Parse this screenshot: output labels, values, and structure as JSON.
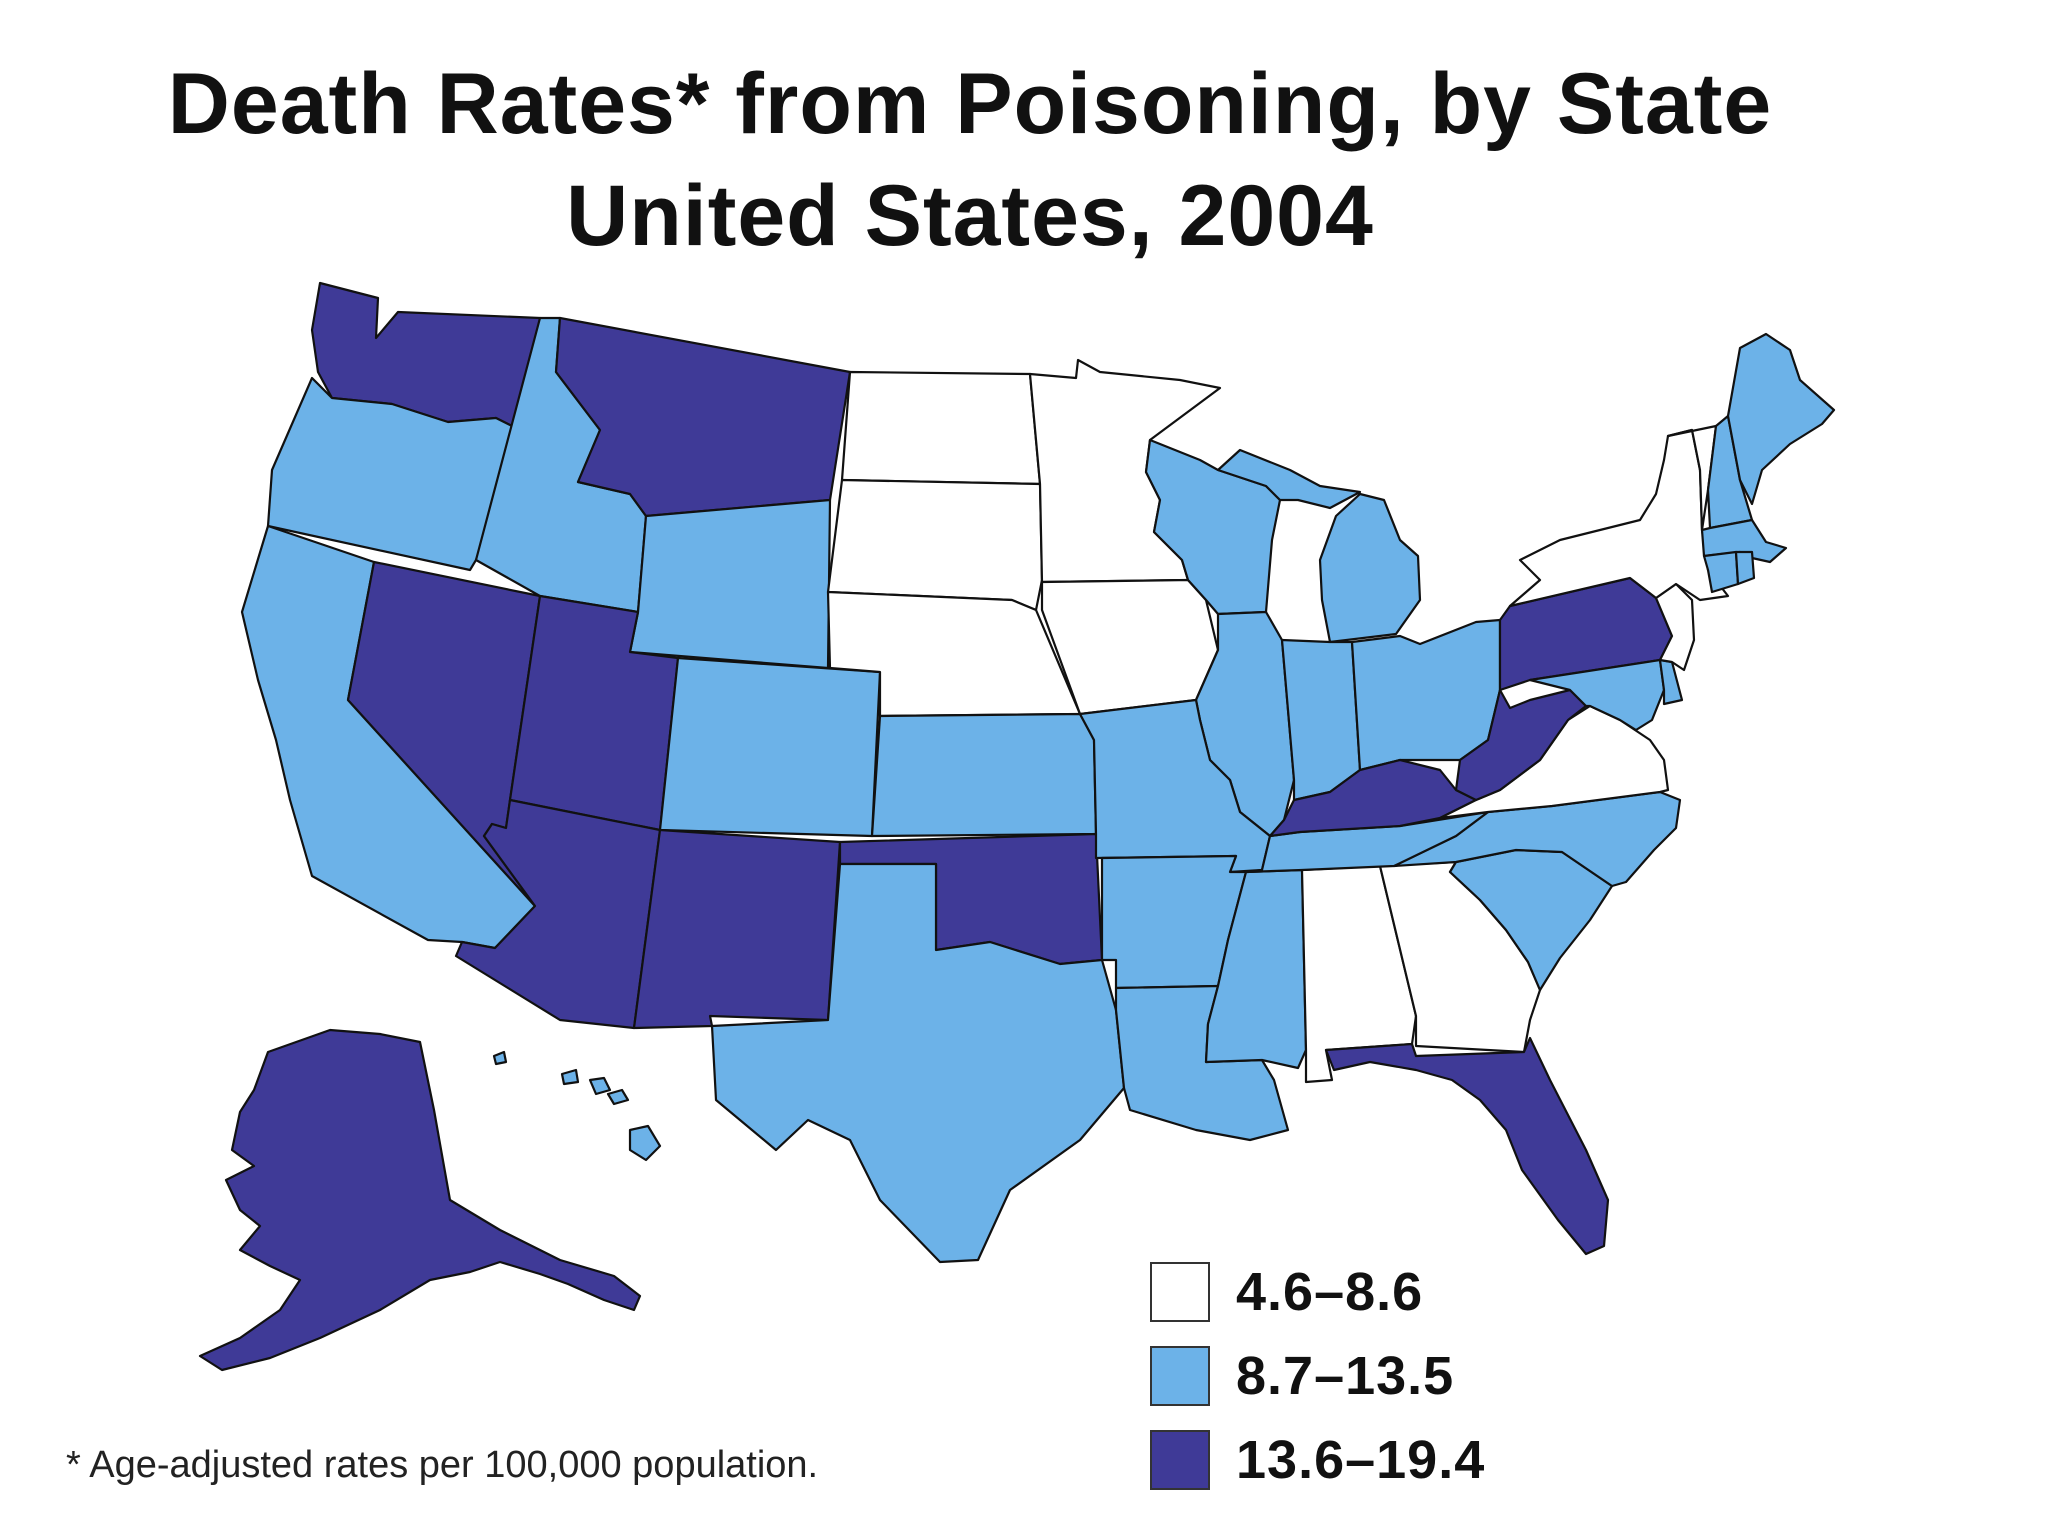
{
  "title": {
    "line1": "Death Rates* from Poisoning, by State",
    "line2": "United States, 2004"
  },
  "legend": {
    "items": [
      {
        "label": "4.6–8.6",
        "color": "#ffffff",
        "category": "low"
      },
      {
        "label": "8.7–13.5",
        "color": "#6cb2e8",
        "category": "mid"
      },
      {
        "label": "13.6–19.4",
        "color": "#3f3a97",
        "category": "high"
      }
    ]
  },
  "footnote": "* Age-adjusted rates per 100,000 population.",
  "map": {
    "colors": {
      "low": "#ffffff",
      "mid": "#6cb2e8",
      "high": "#3f3a97"
    },
    "states": {
      "WA": "high",
      "OR": "mid",
      "CA": "mid",
      "NV": "high",
      "ID": "mid",
      "MT": "high",
      "WY": "mid",
      "UT": "high",
      "AZ": "high",
      "NM": "high",
      "CO": "mid",
      "ND": "low",
      "SD": "low",
      "NE": "low",
      "KS": "mid",
      "OK": "high",
      "TX": "mid",
      "MN": "low",
      "IA": "low",
      "MO": "mid",
      "AR": "mid",
      "LA": "mid",
      "WI": "mid",
      "IL": "mid",
      "MI": "mid",
      "IN": "mid",
      "OH": "mid",
      "KY": "high",
      "TN": "mid",
      "MS": "mid",
      "AL": "low",
      "GA": "low",
      "FL": "high",
      "SC": "mid",
      "NC": "mid",
      "VA": "low",
      "WV": "high",
      "PA": "high",
      "NY": "low",
      "VT": "low",
      "NH": "mid",
      "ME": "mid",
      "MA": "mid",
      "CT": "mid",
      "RI": "mid",
      "NJ": "low",
      "DE": "mid",
      "MD": "mid",
      "AK": "high",
      "HI": "mid"
    }
  }
}
